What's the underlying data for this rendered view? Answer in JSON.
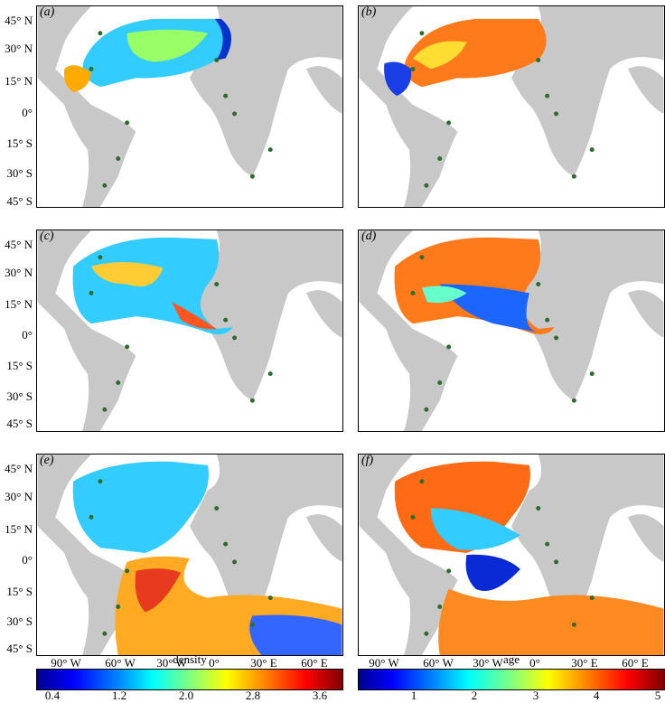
{
  "panels": [
    {
      "label": "(a)",
      "variable": "density"
    },
    {
      "label": "(b)",
      "variable": "age"
    },
    {
      "label": "(c)",
      "variable": "density"
    },
    {
      "label": "(d)",
      "variable": "age"
    },
    {
      "label": "(e)",
      "variable": "density"
    },
    {
      "label": "(f)",
      "variable": "age"
    }
  ],
  "axes": {
    "lat_labels": [
      "45° N",
      "30° N",
      "15° N",
      "0°",
      "15° S",
      "30° S",
      "45° S"
    ],
    "lon_labels": [
      "90° W",
      "60° W",
      "30° W",
      "0°",
      "30° E",
      "60° E"
    ]
  },
  "colorbars": {
    "density": {
      "title": "density",
      "ticks": [
        "0.4",
        "1.2",
        "2.0",
        "2.8",
        "3.6"
      ]
    },
    "age": {
      "title": "age",
      "ticks": [
        "1",
        "2",
        "3",
        "4",
        "5"
      ]
    }
  },
  "colors": {
    "land": "#c8c8c8",
    "ocean": "#ffffff",
    "site_marker": "#2e6b2e"
  }
}
